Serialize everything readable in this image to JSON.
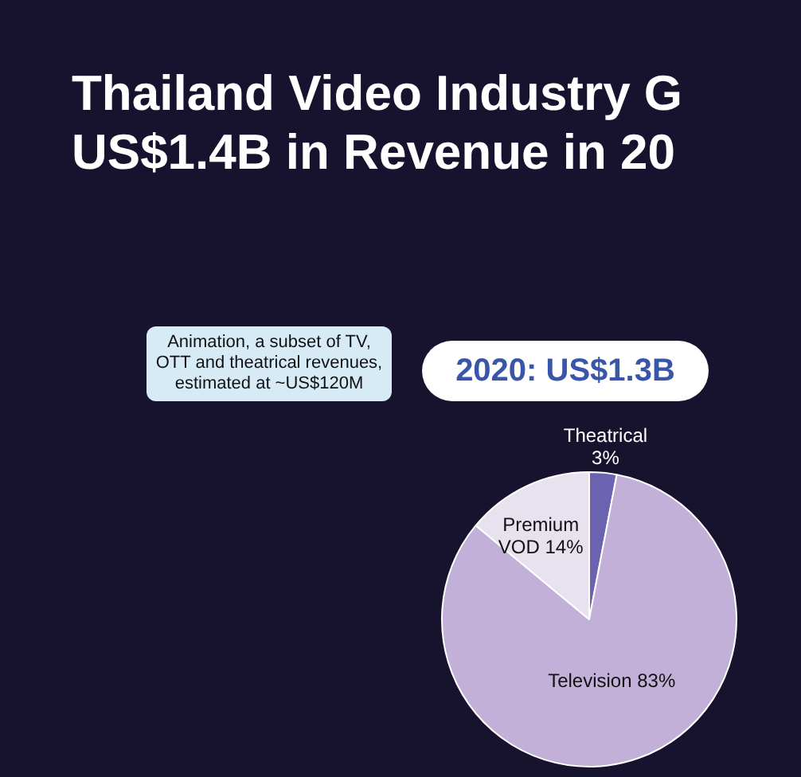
{
  "chart_data": {
    "type": "pie",
    "title": "Thailand Video Industry G\nUS$1.4B in Revenue in 20",
    "subtitle": "2020: US$1.3B",
    "annotations": [
      "Animation, a subset of TV, OTT and theatrical revenues, estimated at ~US$120M"
    ],
    "categories": [
      "Theatrical",
      "Television",
      "Premium VOD"
    ],
    "values": [
      3,
      83,
      14
    ],
    "value_labels": [
      "3%",
      "83%",
      "14%"
    ],
    "colors": [
      "#6b62b0",
      "#c2b0d8",
      "#e8e2ef"
    ],
    "legend": false
  }
}
